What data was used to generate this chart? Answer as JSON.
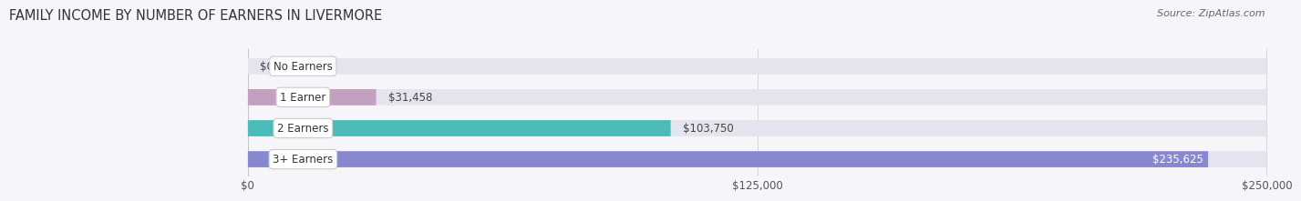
{
  "title": "FAMILY INCOME BY NUMBER OF EARNERS IN LIVERMORE",
  "source": "Source: ZipAtlas.com",
  "categories": [
    "No Earners",
    "1 Earner",
    "2 Earners",
    "3+ Earners"
  ],
  "values": [
    0,
    31458,
    103750,
    235625
  ],
  "value_labels": [
    "$0",
    "$31,458",
    "$103,750",
    "$235,625"
  ],
  "bar_colors": [
    "#a8c4e0",
    "#c4a0c0",
    "#4bbcb8",
    "#8888d0"
  ],
  "bar_bg_color": "#e4e4ee",
  "bg_color": "#f5f5fa",
  "xlim_max": 250000,
  "xticks": [
    0,
    125000,
    250000
  ],
  "xtick_labels": [
    "$0",
    "$125,000",
    "$250,000"
  ],
  "title_fontsize": 10.5,
  "source_fontsize": 8,
  "bar_label_fontsize": 8.5,
  "axis_label_fontsize": 8.5,
  "value_label_inside_color": "#ffffff",
  "value_label_outside_color": "#444444",
  "category_label_color": "#333333",
  "bar_height": 0.52,
  "label_pill_color": "#ffffff",
  "label_pill_edge": "#cccccc"
}
